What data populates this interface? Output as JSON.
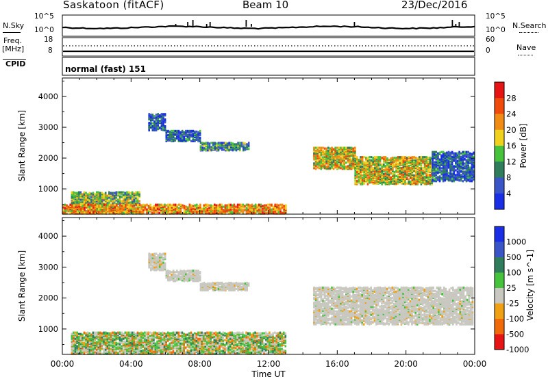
{
  "header": {
    "station": "Saskatoon (fitACF)",
    "beam": "Beam 10",
    "date": "23/Dec/2016"
  },
  "noise_panel": {
    "left_label": "N.Sky",
    "right_label": "N.Search",
    "left_ticks": [
      "10^5",
      "10^0"
    ],
    "right_ticks": [
      "10^5",
      "10^0"
    ]
  },
  "freq_panel": {
    "left_label_1": "Freq.",
    "left_label_2": "[MHz]",
    "right_label": "Nave",
    "left_ticks": [
      "18",
      "8"
    ],
    "right_ticks": [
      "60",
      "0"
    ]
  },
  "cpid": {
    "label": "CPID",
    "value": "normal (fast) 151"
  },
  "chart_data": [
    {
      "type": "heatmap",
      "title": "",
      "quantity": "Power",
      "ylabel": "Slant Range [km]",
      "xlabel": "Time UT",
      "x_ticks": [
        "00:00",
        "04:00",
        "08:00",
        "12:00",
        "16:00",
        "20:00",
        "00:00"
      ],
      "x_range_hours": [
        0,
        24
      ],
      "y_ticks": [
        1000,
        2000,
        3000,
        4000
      ],
      "y_range_km": [
        180,
        4600
      ],
      "colorbar_label": "Power [dB]",
      "colorbar_ticks": [
        "4",
        "8",
        "12",
        "16",
        "20",
        "24",
        "28"
      ],
      "colorbar_colors": [
        "#1a2ee6",
        "#3a55c8",
        "#2f7d5a",
        "#46c23c",
        "#f0d21e",
        "#f08c14",
        "#f04b0a",
        "#e61414"
      ],
      "scatter_regions": [
        {
          "t_start": 5.0,
          "t_end": 6.0,
          "r_min": 2900,
          "r_max": 3450,
          "level": "low"
        },
        {
          "t_start": 6.0,
          "t_end": 8.0,
          "r_min": 2550,
          "r_max": 2900,
          "level": "low"
        },
        {
          "t_start": 8.0,
          "t_end": 10.8,
          "r_min": 2250,
          "r_max": 2500,
          "level": "low-mid"
        },
        {
          "t_start": 14.6,
          "t_end": 17.0,
          "r_min": 1650,
          "r_max": 2350,
          "level": "mid-high"
        },
        {
          "t_start": 17.0,
          "t_end": 21.5,
          "r_min": 1150,
          "r_max": 2050,
          "level": "mid-high"
        },
        {
          "t_start": 21.5,
          "t_end": 23.9,
          "r_min": 1250,
          "r_max": 2200,
          "level": "low"
        },
        {
          "t_start": 0.5,
          "t_end": 4.5,
          "r_min": 250,
          "r_max": 900,
          "level": "mid"
        },
        {
          "t_start": 0.0,
          "t_end": 13.0,
          "r_min": 200,
          "r_max": 500,
          "level": "high"
        }
      ]
    },
    {
      "type": "heatmap",
      "title": "",
      "quantity": "Velocity",
      "ylabel": "Slant Range [km]",
      "xlabel": "Time UT",
      "x_ticks": [
        "00:00",
        "04:00",
        "08:00",
        "12:00",
        "16:00",
        "20:00",
        "00:00"
      ],
      "x_range_hours": [
        0,
        24
      ],
      "y_ticks": [
        1000,
        2000,
        3000,
        4000
      ],
      "y_range_km": [
        180,
        4600
      ],
      "colorbar_label": "Velocity [m s^-1]",
      "colorbar_ticks": [
        "1000",
        "500",
        "100",
        "25",
        "-25",
        "-100",
        "-500",
        "-1000"
      ],
      "colorbar_colors": [
        "#1a2ee6",
        "#3a55c8",
        "#2f7d5a",
        "#46c23c",
        "#c8c8c0",
        "#f0a014",
        "#f06a0a",
        "#e61414"
      ],
      "scatter_regions": [
        {
          "t_start": 5.0,
          "t_end": 6.0,
          "r_min": 2900,
          "r_max": 3450,
          "level": "zero"
        },
        {
          "t_start": 6.0,
          "t_end": 8.0,
          "r_min": 2550,
          "r_max": 2900,
          "level": "zero"
        },
        {
          "t_start": 8.0,
          "t_end": 10.8,
          "r_min": 2250,
          "r_max": 2500,
          "level": "zero"
        },
        {
          "t_start": 14.6,
          "t_end": 23.9,
          "r_min": 1150,
          "r_max": 2350,
          "level": "zero"
        },
        {
          "t_start": 0.5,
          "t_end": 13.0,
          "r_min": 200,
          "r_max": 900,
          "level": "mixed"
        }
      ]
    }
  ]
}
